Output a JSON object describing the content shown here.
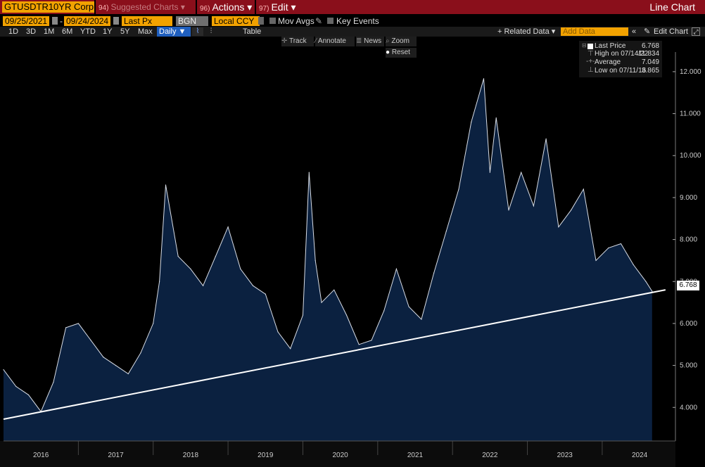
{
  "header": {
    "ticker": "GTUSDTR10YR Corp",
    "menus": [
      {
        "num": "94)",
        "label": "Suggested Charts"
      },
      {
        "num": "96)",
        "label": "Actions"
      },
      {
        "num": "97)",
        "label": "Edit"
      }
    ],
    "title": "Line Chart"
  },
  "controls": {
    "start_date": "09/25/2021",
    "end_date": "09/24/2024",
    "field": "Last Px",
    "source": "BGN",
    "currency": "Local CCY",
    "mov_avgs": "Mov Avgs",
    "key_events": "Key Events"
  },
  "ranges": [
    "1D",
    "3D",
    "1M",
    "6M",
    "YTD",
    "1Y",
    "5Y",
    "Max"
  ],
  "frequency": "Daily ▼",
  "table_label": "Table",
  "related_data": "+ Related Data ▾",
  "add_data_placeholder": "Add Data",
  "edit_chart": "Edit Chart",
  "toolbar": {
    "track": "Track",
    "annotate": "Annotate",
    "news": "News",
    "zoom": "Zoom",
    "reset": "Reset"
  },
  "legend": {
    "last_label": "Last Price",
    "last_value": "6.768",
    "high_label": "High on 07/14/22",
    "high_value": "11.834",
    "avg_label": "Average",
    "avg_value": "7.049",
    "low_label": "Low on 07/11/16",
    "low_value": "3.865"
  },
  "colors": {
    "accent": "#f2a200",
    "header": "#8a0f1b",
    "area": "#0b2140",
    "line": "#ffffff"
  },
  "chart_data": {
    "type": "area",
    "ylim": [
      3.2,
      12.3
    ],
    "yticks": [
      "4.000",
      "5.000",
      "6.000",
      "7.000",
      "8.000",
      "9.000",
      "10.000",
      "11.000",
      "12.000"
    ],
    "xlabels": [
      "2016",
      "2017",
      "2018",
      "2019",
      "2020",
      "2021",
      "2022",
      "2023",
      "2024"
    ],
    "last_value_label": "6.768",
    "trendline": [
      [
        "2016-01",
        3.72
      ],
      [
        "2024-09",
        6.768
      ]
    ],
    "series": [
      {
        "x": [
          "2016-01",
          "2016-03",
          "2016-05",
          "2016-07",
          "2016-09",
          "2016-11",
          "2017-01",
          "2017-03",
          "2017-05",
          "2017-07",
          "2017-09",
          "2017-11",
          "2018-01",
          "2018-02",
          "2018-03",
          "2018-05",
          "2018-07",
          "2018-09",
          "2018-11",
          "2019-01",
          "2019-03",
          "2019-05",
          "2019-07",
          "2019-09",
          "2019-11",
          "2020-01",
          "2020-02",
          "2020-03",
          "2020-04",
          "2020-06",
          "2020-08",
          "2020-10",
          "2020-12",
          "2021-02",
          "2021-04",
          "2021-06",
          "2021-08",
          "2021-10",
          "2021-12",
          "2022-02",
          "2022-04",
          "2022-06",
          "2022-07",
          "2022-08",
          "2022-10",
          "2022-12",
          "2023-02",
          "2023-04",
          "2023-06",
          "2023-08",
          "2023-10",
          "2023-12",
          "2024-02",
          "2024-04",
          "2024-06",
          "2024-08",
          "2024-09"
        ],
        "values": [
          4.9,
          4.5,
          4.3,
          3.9,
          4.6,
          5.9,
          6.0,
          5.6,
          5.2,
          5.0,
          4.8,
          5.3,
          6.0,
          7.0,
          9.3,
          7.6,
          7.3,
          6.9,
          7.6,
          8.3,
          7.3,
          6.9,
          6.7,
          5.8,
          5.4,
          6.2,
          9.6,
          7.5,
          6.5,
          6.8,
          6.2,
          5.5,
          5.6,
          6.3,
          7.3,
          6.4,
          6.1,
          7.2,
          8.2,
          9.2,
          10.8,
          11.834,
          9.6,
          10.9,
          8.7,
          9.6,
          8.8,
          10.4,
          8.3,
          8.7,
          9.2,
          7.5,
          7.8,
          7.9,
          7.4,
          7.0,
          6.768
        ]
      }
    ]
  }
}
